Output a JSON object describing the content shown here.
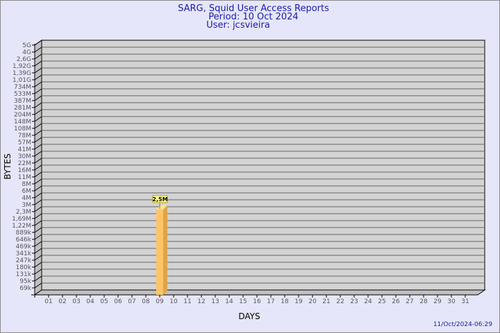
{
  "chart_data": {
    "type": "bar",
    "title": "SARG, Squid User Access Reports",
    "subtitle": [
      "Period: 10 Oct 2024",
      "User: jcsvieira"
    ],
    "xlabel": "DAYS",
    "ylabel": "BYTES",
    "y_scale": "log",
    "grid": true,
    "y_ticks": [
      "5G",
      "4G",
      "2,6G",
      "1,92G",
      "1,39G",
      "1,01G",
      "734M",
      "533M",
      "387M",
      "281M",
      "204M",
      "148M",
      "108M",
      "78M",
      "57M",
      "41M",
      "30M",
      "22M",
      "16M",
      "11M",
      "8M",
      "6M",
      "4M",
      "3M",
      "2,3M",
      "1,69M",
      "1,22M",
      "889k",
      "646k",
      "469k",
      "341k",
      "247k",
      "180k",
      "131k",
      "95k",
      "69k"
    ],
    "categories": [
      "01",
      "02",
      "03",
      "04",
      "05",
      "06",
      "07",
      "08",
      "09",
      "10",
      "11",
      "12",
      "13",
      "14",
      "15",
      "16",
      "17",
      "18",
      "19",
      "20",
      "21",
      "22",
      "23",
      "24",
      "25",
      "26",
      "27",
      "28",
      "29",
      "30",
      "31"
    ],
    "series": [
      {
        "values": {
          "10": 2500000
        },
        "labels": {
          "10": "2,5M"
        }
      }
    ],
    "bar_color": "#ffc468",
    "plot_bg": "#d3d3d3",
    "timestamp": "11/Oct/2024-06:29"
  }
}
